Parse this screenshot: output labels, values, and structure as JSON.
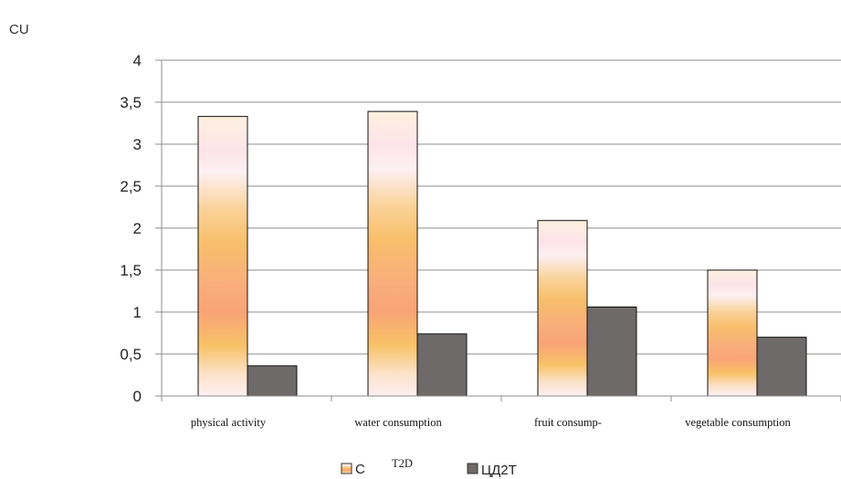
{
  "chart_data": {
    "type": "bar",
    "unit_label": "CU",
    "categories": [
      "physical activity",
      "water consumption",
      "fruit consump-",
      "vegetable consumption"
    ],
    "series": [
      {
        "name": "C",
        "name_suffix": "T2D",
        "values": [
          3.33,
          3.39,
          2.09,
          1.5
        ],
        "fill": "gradient-peach"
      },
      {
        "name": "ЦД2Т",
        "values": [
          0.36,
          0.74,
          1.06,
          0.7
        ],
        "fill": "#6d6a69"
      }
    ],
    "y_ticks": [
      "0",
      "0,5",
      "1",
      "1,5",
      "2",
      "2,5",
      "3",
      "3,5",
      "4"
    ],
    "ylim": [
      0,
      4
    ],
    "grid": true,
    "legend_position": "bottom-center",
    "colors": {
      "bar_dark": "#6d6a69",
      "gradient_mid": "#f9a877",
      "gradient_light": "#fdf3e4",
      "gradient_gold": "#f8c267",
      "grid": "#8c8c8c",
      "axis": "#8c8c8c"
    }
  }
}
